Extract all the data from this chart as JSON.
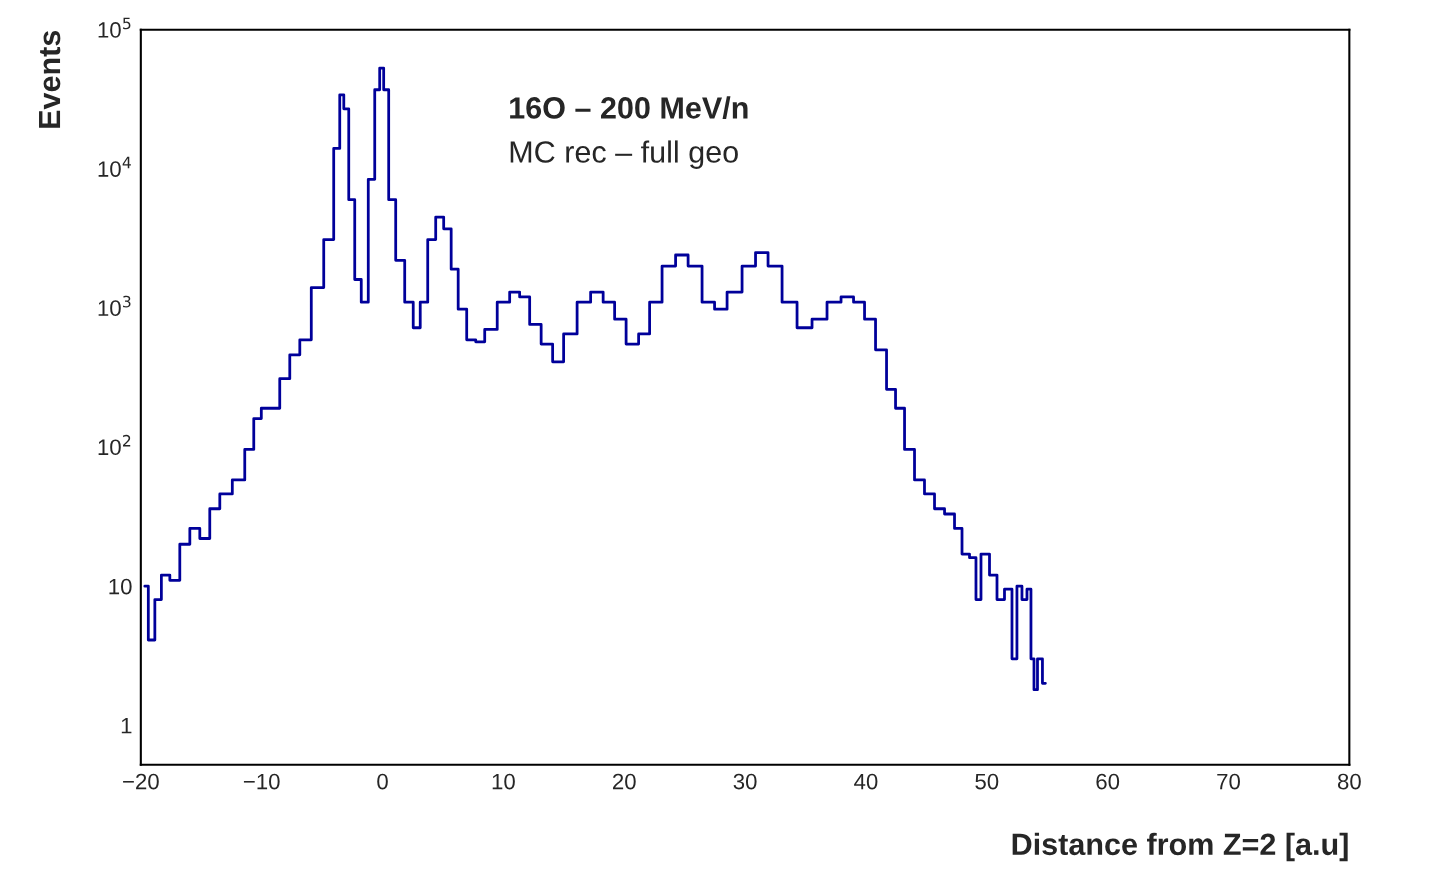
{
  "chart_data": {
    "type": "step",
    "xlabel": "Distance from Z=2 [a.u]",
    "ylabel": "Events",
    "log": "y",
    "grid": false,
    "annotations": [
      "16O – 200 MeV/n",
      "MC rec – full geo"
    ],
    "xlim": [
      -20,
      80
    ],
    "xticks": [
      {
        "value": -20,
        "label": "−20"
      },
      {
        "value": -10,
        "label": "−10"
      },
      0,
      10,
      20,
      30,
      40,
      50,
      60,
      70,
      80
    ],
    "ylim": [
      0.52,
      100000
    ],
    "yticks": [
      1,
      10,
      {
        "value": 100,
        "label": "10$^{2}$"
      },
      {
        "value": 1000,
        "label": "10$^{3}$"
      },
      {
        "value": 10000,
        "label": "10$^{4}$"
      },
      {
        "value": 100000,
        "label": "10$^{5}$"
      }
    ],
    "series": [
      {
        "color": "#00009a",
        "x": [
          -19.67,
          -19.09,
          -18.59,
          -18.01,
          -17.19,
          -16.36,
          -15.53,
          -14.71,
          -13.88,
          -13.05,
          -11.81,
          -10.99,
          -10.32,
          -9.74,
          -8.92,
          -8.09,
          -7.26,
          -6.43,
          -5.36,
          -4.37,
          -3.71,
          -3.37,
          -3.04,
          -2.55,
          -2.05,
          -1.47,
          -0.89,
          -0.4,
          -0.07,
          0.26,
          0.76,
          1.42,
          2.25,
          2.83,
          3.41,
          4.07,
          4.73,
          5.39,
          5.97,
          6.55,
          7.38,
          8.04,
          8.87,
          10.11,
          10.93,
          11.76,
          12.59,
          13.66,
          14.49,
          15.48,
          16.72,
          17.72,
          18.79,
          19.62,
          20.69,
          21.69,
          22.51,
          23.75,
          24.75,
          25.82,
          27.06,
          27.89,
          29.13,
          30.37,
          31.36,
          32.44,
          33.68,
          34.92,
          36.16,
          37.4,
          38.48,
          39.47,
          40.3,
          41.29,
          42.12,
          42.78,
          43.61,
          44.43,
          45.26,
          46.09,
          46.92,
          47.74,
          48.16,
          48.98,
          49.23,
          49.81,
          50.64,
          51.05,
          51.88,
          52.29,
          52.7,
          53.12,
          53.53,
          53.78,
          54.03,
          54.36,
          54.85
        ],
        "values": [
          10,
          4.1,
          8,
          12,
          11,
          20,
          26,
          22,
          36,
          46,
          58,
          96,
          160,
          190,
          190,
          310,
          460,
          590,
          1400,
          3100,
          14000,
          34000,
          27000,
          6000,
          1600,
          1100,
          8400,
          37000,
          53000,
          37000,
          6000,
          2200,
          1100,
          720,
          1100,
          3100,
          4500,
          3700,
          1900,
          980,
          590,
          570,
          700,
          1100,
          1300,
          1200,
          760,
          550,
          410,
          650,
          1100,
          1300,
          1100,
          830,
          550,
          650,
          1100,
          2000,
          2400,
          2000,
          1100,
          980,
          1300,
          2000,
          2500,
          2000,
          1100,
          720,
          830,
          1100,
          1200,
          1100,
          830,
          500,
          260,
          190,
          96,
          58,
          46,
          36,
          33,
          26,
          17,
          16,
          8,
          17,
          12,
          8,
          9.5,
          3,
          10,
          8,
          9.5,
          3,
          1.8,
          3,
          2
        ]
      }
    ]
  }
}
